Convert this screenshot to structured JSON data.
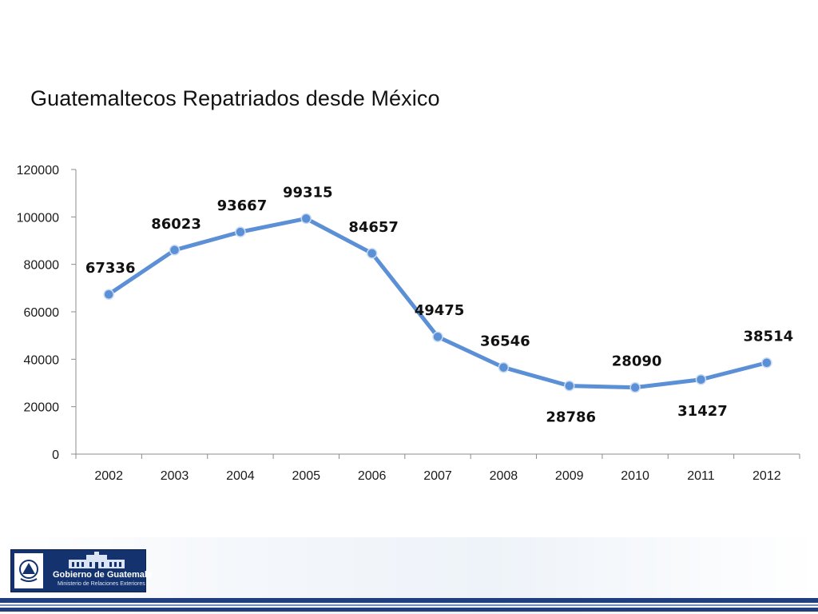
{
  "page": {
    "title": "Guatemaltecos Repatriados desde México"
  },
  "chart_data": {
    "type": "line",
    "title": "",
    "xlabel": "",
    "ylabel": "",
    "x": [
      "2002",
      "2003",
      "2004",
      "2005",
      "2006",
      "2007",
      "2008",
      "2009",
      "2010",
      "2011",
      "2012"
    ],
    "series": [
      {
        "values": [
          67336,
          86023,
          93667,
          99315,
          84657,
          49475,
          36546,
          28786,
          28090,
          31427,
          38514
        ],
        "labels": [
          "67336",
          "86023",
          "93667",
          "99315",
          "84657",
          "49475",
          "36546",
          "28786",
          "28090",
          "31427",
          "38514"
        ],
        "color": "#5b8fd6"
      }
    ],
    "ylim": [
      0,
      120000
    ],
    "yticks": [
      "0",
      "20000",
      "40000",
      "60000",
      "80000",
      "100000",
      "120000"
    ],
    "grid": false,
    "legend": "none"
  },
  "footer": {
    "logo_title": "Gobierno de Guatemala",
    "logo_subtitle": "Ministerio de Relaciones Exteriores",
    "colors": {
      "logo_bg": "#14336e",
      "stripe": "#1f3f7f"
    }
  }
}
